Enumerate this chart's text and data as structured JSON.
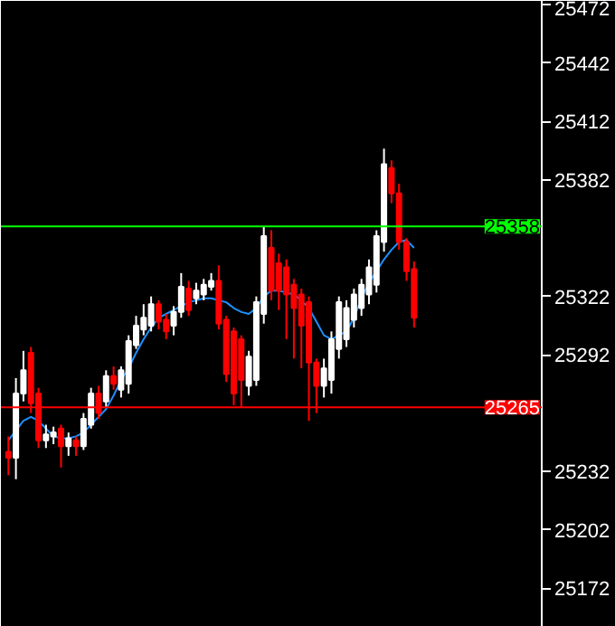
{
  "chart_data": {
    "type": "candlestick",
    "categories": [
      null,
      null,
      null,
      null,
      null,
      null,
      null,
      null,
      null,
      null,
      null,
      null,
      null,
      null,
      null,
      null,
      null,
      null,
      null,
      null,
      null,
      null,
      null,
      null,
      null,
      null,
      null,
      null,
      null,
      null,
      null,
      null,
      null,
      null,
      null,
      null,
      null,
      null,
      null,
      null,
      null,
      null,
      null,
      null,
      null,
      null,
      null,
      null,
      null,
      null,
      null,
      null,
      null,
      null,
      null
    ],
    "ohlc": [
      [
        25242,
        25250,
        25230,
        25239
      ],
      [
        25239,
        25280,
        25228,
        25272
      ],
      [
        25272,
        25294,
        25268,
        25284
      ],
      [
        25293,
        25296,
        25262,
        25267
      ],
      [
        25272,
        25275,
        25244,
        25248
      ],
      [
        25248,
        25256,
        25244,
        25251
      ],
      [
        25250,
        25255,
        25246,
        25252
      ],
      [
        25254,
        25256,
        25234,
        25245
      ],
      [
        25245,
        25252,
        25240,
        25249
      ],
      [
        25248,
        25250,
        25240,
        25245
      ],
      [
        25245,
        25262,
        25243,
        25259
      ],
      [
        25256,
        25275,
        25254,
        25272
      ],
      [
        25272,
        25276,
        25259,
        25262
      ],
      [
        25268,
        25284,
        25265,
        25281
      ],
      [
        25281,
        25286,
        25274,
        25277
      ],
      [
        25274,
        25286,
        25270,
        25284
      ],
      [
        25277,
        25302,
        25272,
        25299
      ],
      [
        25297,
        25312,
        25295,
        25307
      ],
      [
        25305,
        25318,
        25302,
        25311
      ],
      [
        25307,
        25322,
        25304,
        25318
      ],
      [
        25318,
        25320,
        25305,
        25309
      ],
      [
        25310,
        25313,
        25300,
        25304
      ],
      [
        25307,
        25317,
        25302,
        25314
      ],
      [
        25314,
        25334,
        25311,
        25327
      ],
      [
        25326,
        25330,
        25312,
        25315
      ],
      [
        25321,
        25329,
        25318,
        25325
      ],
      [
        25323,
        25331,
        25320,
        25328
      ],
      [
        25327,
        25334,
        25325,
        25330
      ],
      [
        25330,
        25338,
        25305,
        25308
      ],
      [
        25310,
        25312,
        25278,
        25282
      ],
      [
        25304,
        25306,
        25266,
        25272
      ],
      [
        25300,
        25302,
        25265,
        25279
      ],
      [
        25276,
        25294,
        25271,
        25291
      ],
      [
        25279,
        25322,
        25276,
        25319
      ],
      [
        25313,
        25358,
        25308,
        25353
      ],
      [
        25347,
        25356,
        25320,
        25325
      ],
      [
        25339,
        25344,
        25315,
        25325
      ],
      [
        25337,
        25341,
        25300,
        25323
      ],
      [
        25328,
        25331,
        25290,
        25316
      ],
      [
        25323,
        25326,
        25285,
        25307
      ],
      [
        25319,
        25322,
        25258,
        25288
      ],
      [
        25288,
        25290,
        25262,
        25276
      ],
      [
        25276,
        25290,
        25270,
        25285
      ],
      [
        25279,
        25304,
        25272,
        25300
      ],
      [
        25295,
        25322,
        25290,
        25319
      ],
      [
        25300,
        25320,
        25296,
        25316
      ],
      [
        25310,
        25326,
        25306,
        25323
      ],
      [
        25316,
        25331,
        25312,
        25328
      ],
      [
        25323,
        25341,
        25318,
        25337
      ],
      [
        25328,
        25356,
        25324,
        25353
      ],
      [
        25350,
        25398,
        25345,
        25390
      ],
      [
        25388,
        25392,
        25370,
        25375
      ],
      [
        25375,
        25380,
        25346,
        25350
      ],
      [
        25350,
        25352,
        25330,
        25335
      ],
      [
        25336,
        25340,
        25306,
        25311
      ]
    ],
    "colors": [
      "#ff0000",
      "#ffffff",
      "#ffffff",
      "#ff0000",
      "#ff0000",
      "#ffffff",
      "#ffffff",
      "#ff0000",
      "#ffffff",
      "#ff0000",
      "#ffffff",
      "#ffffff",
      "#ff0000",
      "#ffffff",
      "#ff0000",
      "#ffffff",
      "#ffffff",
      "#ffffff",
      "#ffffff",
      "#ffffff",
      "#ff0000",
      "#ff0000",
      "#ffffff",
      "#ffffff",
      "#ff0000",
      "#ffffff",
      "#ffffff",
      "#ffffff",
      "#ff0000",
      "#ff0000",
      "#ff0000",
      "#ff0000",
      "#ffffff",
      "#ffffff",
      "#ffffff",
      "#ff0000",
      "#ff0000",
      "#ff0000",
      "#ff0000",
      "#ff0000",
      "#ff0000",
      "#ff0000",
      "#ffffff",
      "#ffffff",
      "#ffffff",
      "#ffffff",
      "#ffffff",
      "#ffffff",
      "#ffffff",
      "#ffffff",
      "#ffffff",
      "#ff0000",
      "#ff0000",
      "#ff0000",
      "#ff0000"
    ],
    "series": [
      {
        "type": "line",
        "color": "#1e90ff",
        "values": [
          25248,
          25253,
          25258,
          25260,
          25258,
          25254,
          25250,
          25249,
          25249,
          25250,
          25252,
          25256,
          25260,
          25264,
          25271,
          25279,
          25285,
          25293,
          25300,
          25306,
          25311,
          25313,
          25315,
          25317,
          25319,
          25320,
          25321,
          25321,
          25320,
          25319,
          25316,
          25314,
          25313,
          25316,
          25322,
          25325,
          25325,
          25324,
          25323,
          25320,
          25316,
          25309,
          25302,
          25300,
          25302,
          25304,
          25311,
          25321,
          25329,
          25335,
          25341,
          25346,
          25350,
          25351,
          25347
        ]
      }
    ],
    "ylim": [
      25152,
      25474
    ],
    "yticks": [
      25172,
      25202,
      25232,
      25292,
      25322,
      25382,
      25412,
      25442,
      25472
    ],
    "ref_lines": [
      {
        "axis": "y",
        "value": 25358,
        "label": "25358",
        "color": "#00ff00"
      },
      {
        "axis": "y",
        "value": 25265,
        "label": "25265",
        "color": "#ff0000"
      }
    ],
    "grid": false
  }
}
